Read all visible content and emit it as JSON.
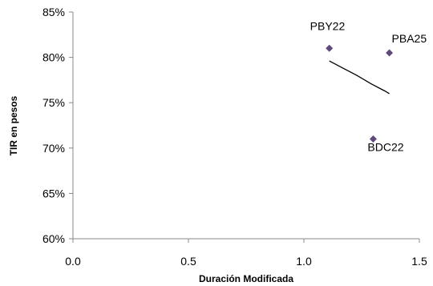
{
  "chart_data": {
    "type": "scatter",
    "xlabel": "Duración Modificada",
    "ylabel": "TIR en pesos",
    "xlim": [
      0.0,
      1.5
    ],
    "ylim": [
      60,
      85
    ],
    "x_ticks": [
      0.0,
      0.5,
      1.0,
      1.5
    ],
    "x_tick_labels": [
      "0.0",
      "0.5",
      "1.0",
      "1.5"
    ],
    "y_ticks": [
      60,
      65,
      70,
      75,
      80,
      85
    ],
    "y_tick_labels": [
      "60%",
      "65%",
      "70%",
      "75%",
      "80%",
      "85%"
    ],
    "grid": false,
    "legend": "none",
    "series": [
      {
        "points": [
          {
            "label": "PBY22",
            "x": 1.11,
            "y": 81.0
          },
          {
            "label": "PBA25",
            "x": 1.37,
            "y": 80.5
          },
          {
            "label": "BDC22",
            "x": 1.3,
            "y": 71.0
          }
        ],
        "color": "#604a7b",
        "marker": "diamond"
      }
    ],
    "trendline": {
      "x": [
        1.11,
        1.17,
        1.23,
        1.29,
        1.35,
        1.37
      ],
      "y": [
        79.6,
        78.8,
        78.0,
        77.1,
        76.3,
        76.0
      ],
      "color": "#000000"
    }
  }
}
